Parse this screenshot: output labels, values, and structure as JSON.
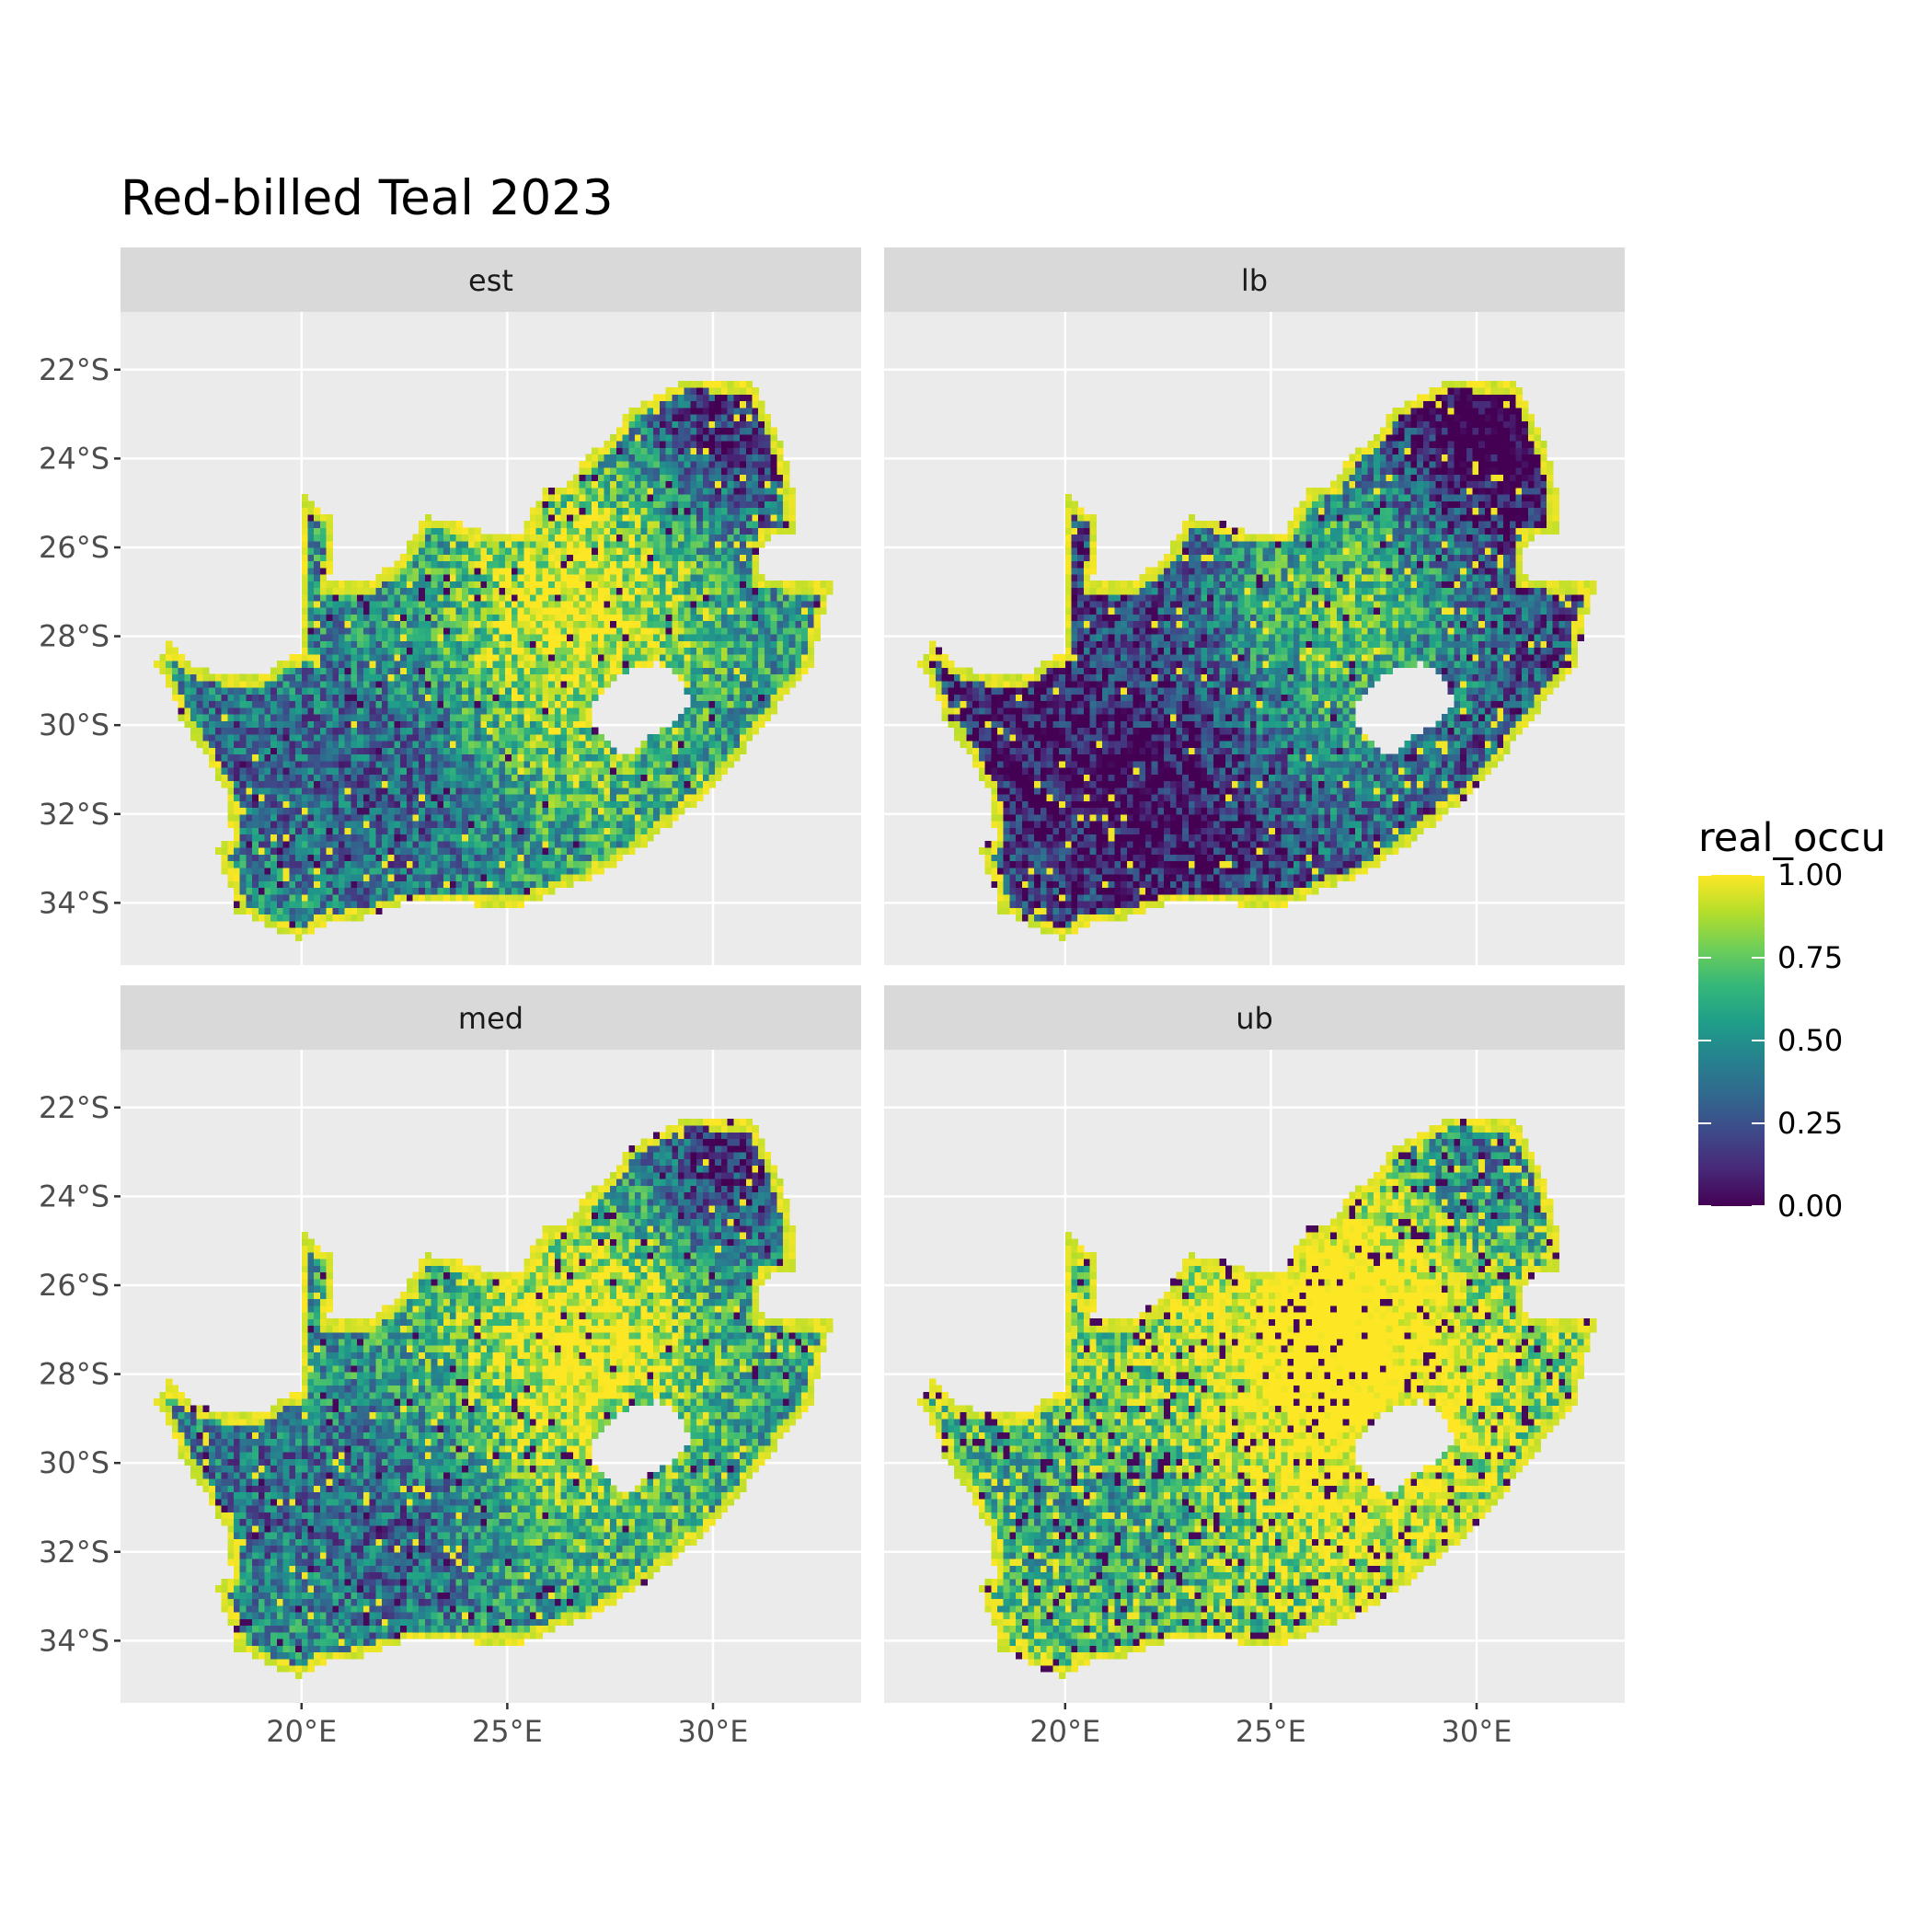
{
  "title": "Red-billed Teal 2023",
  "facets": [
    {
      "label": "est",
      "variant": "est"
    },
    {
      "label": "lb",
      "variant": "lb"
    },
    {
      "label": "med",
      "variant": "med"
    },
    {
      "label": "ub",
      "variant": "ub"
    }
  ],
  "axes": {
    "x_ticks": [
      {
        "value": 20,
        "label": "20°E"
      },
      {
        "value": 25,
        "label": "25°E"
      },
      {
        "value": 30,
        "label": "30°E"
      }
    ],
    "y_ticks": [
      {
        "value": -22,
        "label": "22°S"
      },
      {
        "value": -24,
        "label": "24°S"
      },
      {
        "value": -26,
        "label": "26°S"
      },
      {
        "value": -28,
        "label": "28°S"
      },
      {
        "value": -30,
        "label": "30°S"
      },
      {
        "value": -32,
        "label": "32°S"
      },
      {
        "value": -34,
        "label": "34°S"
      }
    ],
    "xlim": [
      15.6,
      33.6
    ],
    "ylim": [
      -35.4,
      -20.7
    ]
  },
  "legend": {
    "title": "real_occu",
    "breaks": [
      {
        "value": 1.0,
        "label": "1.00"
      },
      {
        "value": 0.75,
        "label": "0.75"
      },
      {
        "value": 0.5,
        "label": "0.50"
      },
      {
        "value": 0.25,
        "label": "0.25"
      },
      {
        "value": 0.0,
        "label": "0.00"
      }
    ],
    "range": [
      0,
      1
    ],
    "palette": [
      "#440154",
      "#482878",
      "#3e4989",
      "#31688e",
      "#26828e",
      "#1f9e89",
      "#35b779",
      "#6ece58",
      "#b5de2b",
      "#fde725"
    ]
  },
  "colors": {
    "panel_background": "#ebebeb",
    "grid": "#ffffff",
    "strip_background": "#d9d9d9"
  }
}
